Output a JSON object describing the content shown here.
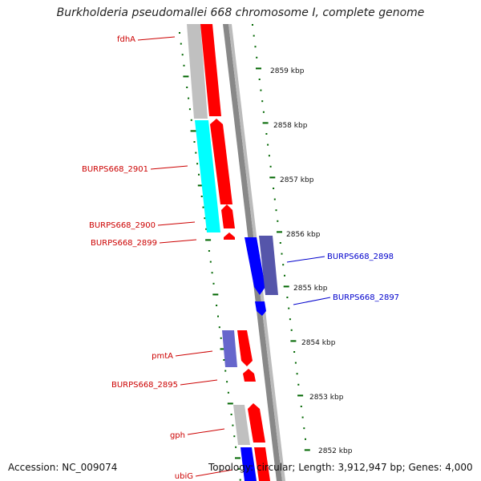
{
  "title": "Burkholderia pseudomallei 668 chromosome I, complete genome",
  "footer": {
    "accession": "Accession: NC_009074",
    "topology": "Topology: circular; Length: 3,912,947 bp; Genes: 4,000"
  },
  "colors": {
    "forward_cds": "#ff0000",
    "reverse_cds": "#0000ff",
    "other_feature": "#c0c0c0",
    "cyan_feature": "#00ffff",
    "purple_feature": "#5555aa",
    "tick": "#006600",
    "backbone": "#888888",
    "red_label": "#cc0000",
    "blue_label": "#0000cc"
  },
  "scale": {
    "labels": [
      "2859 kbp",
      "2858 kbp",
      "2857 kbp",
      "2856 kbp",
      "2855 kbp",
      "2854 kbp",
      "2853 kbp",
      "2852 kbp"
    ]
  },
  "genes": [
    {
      "name": "fdhA",
      "color": "red"
    },
    {
      "name": "BURPS668_2901",
      "color": "red"
    },
    {
      "name": "BURPS668_2900",
      "color": "red"
    },
    {
      "name": "BURPS668_2899",
      "color": "red"
    },
    {
      "name": "BURPS668_2898",
      "color": "blue"
    },
    {
      "name": "BURPS668_2897",
      "color": "blue"
    },
    {
      "name": "pmtA",
      "color": "red"
    },
    {
      "name": "BURPS668_2895",
      "color": "red"
    },
    {
      "name": "gph",
      "color": "red"
    },
    {
      "name": "ubiG",
      "color": "red"
    }
  ]
}
